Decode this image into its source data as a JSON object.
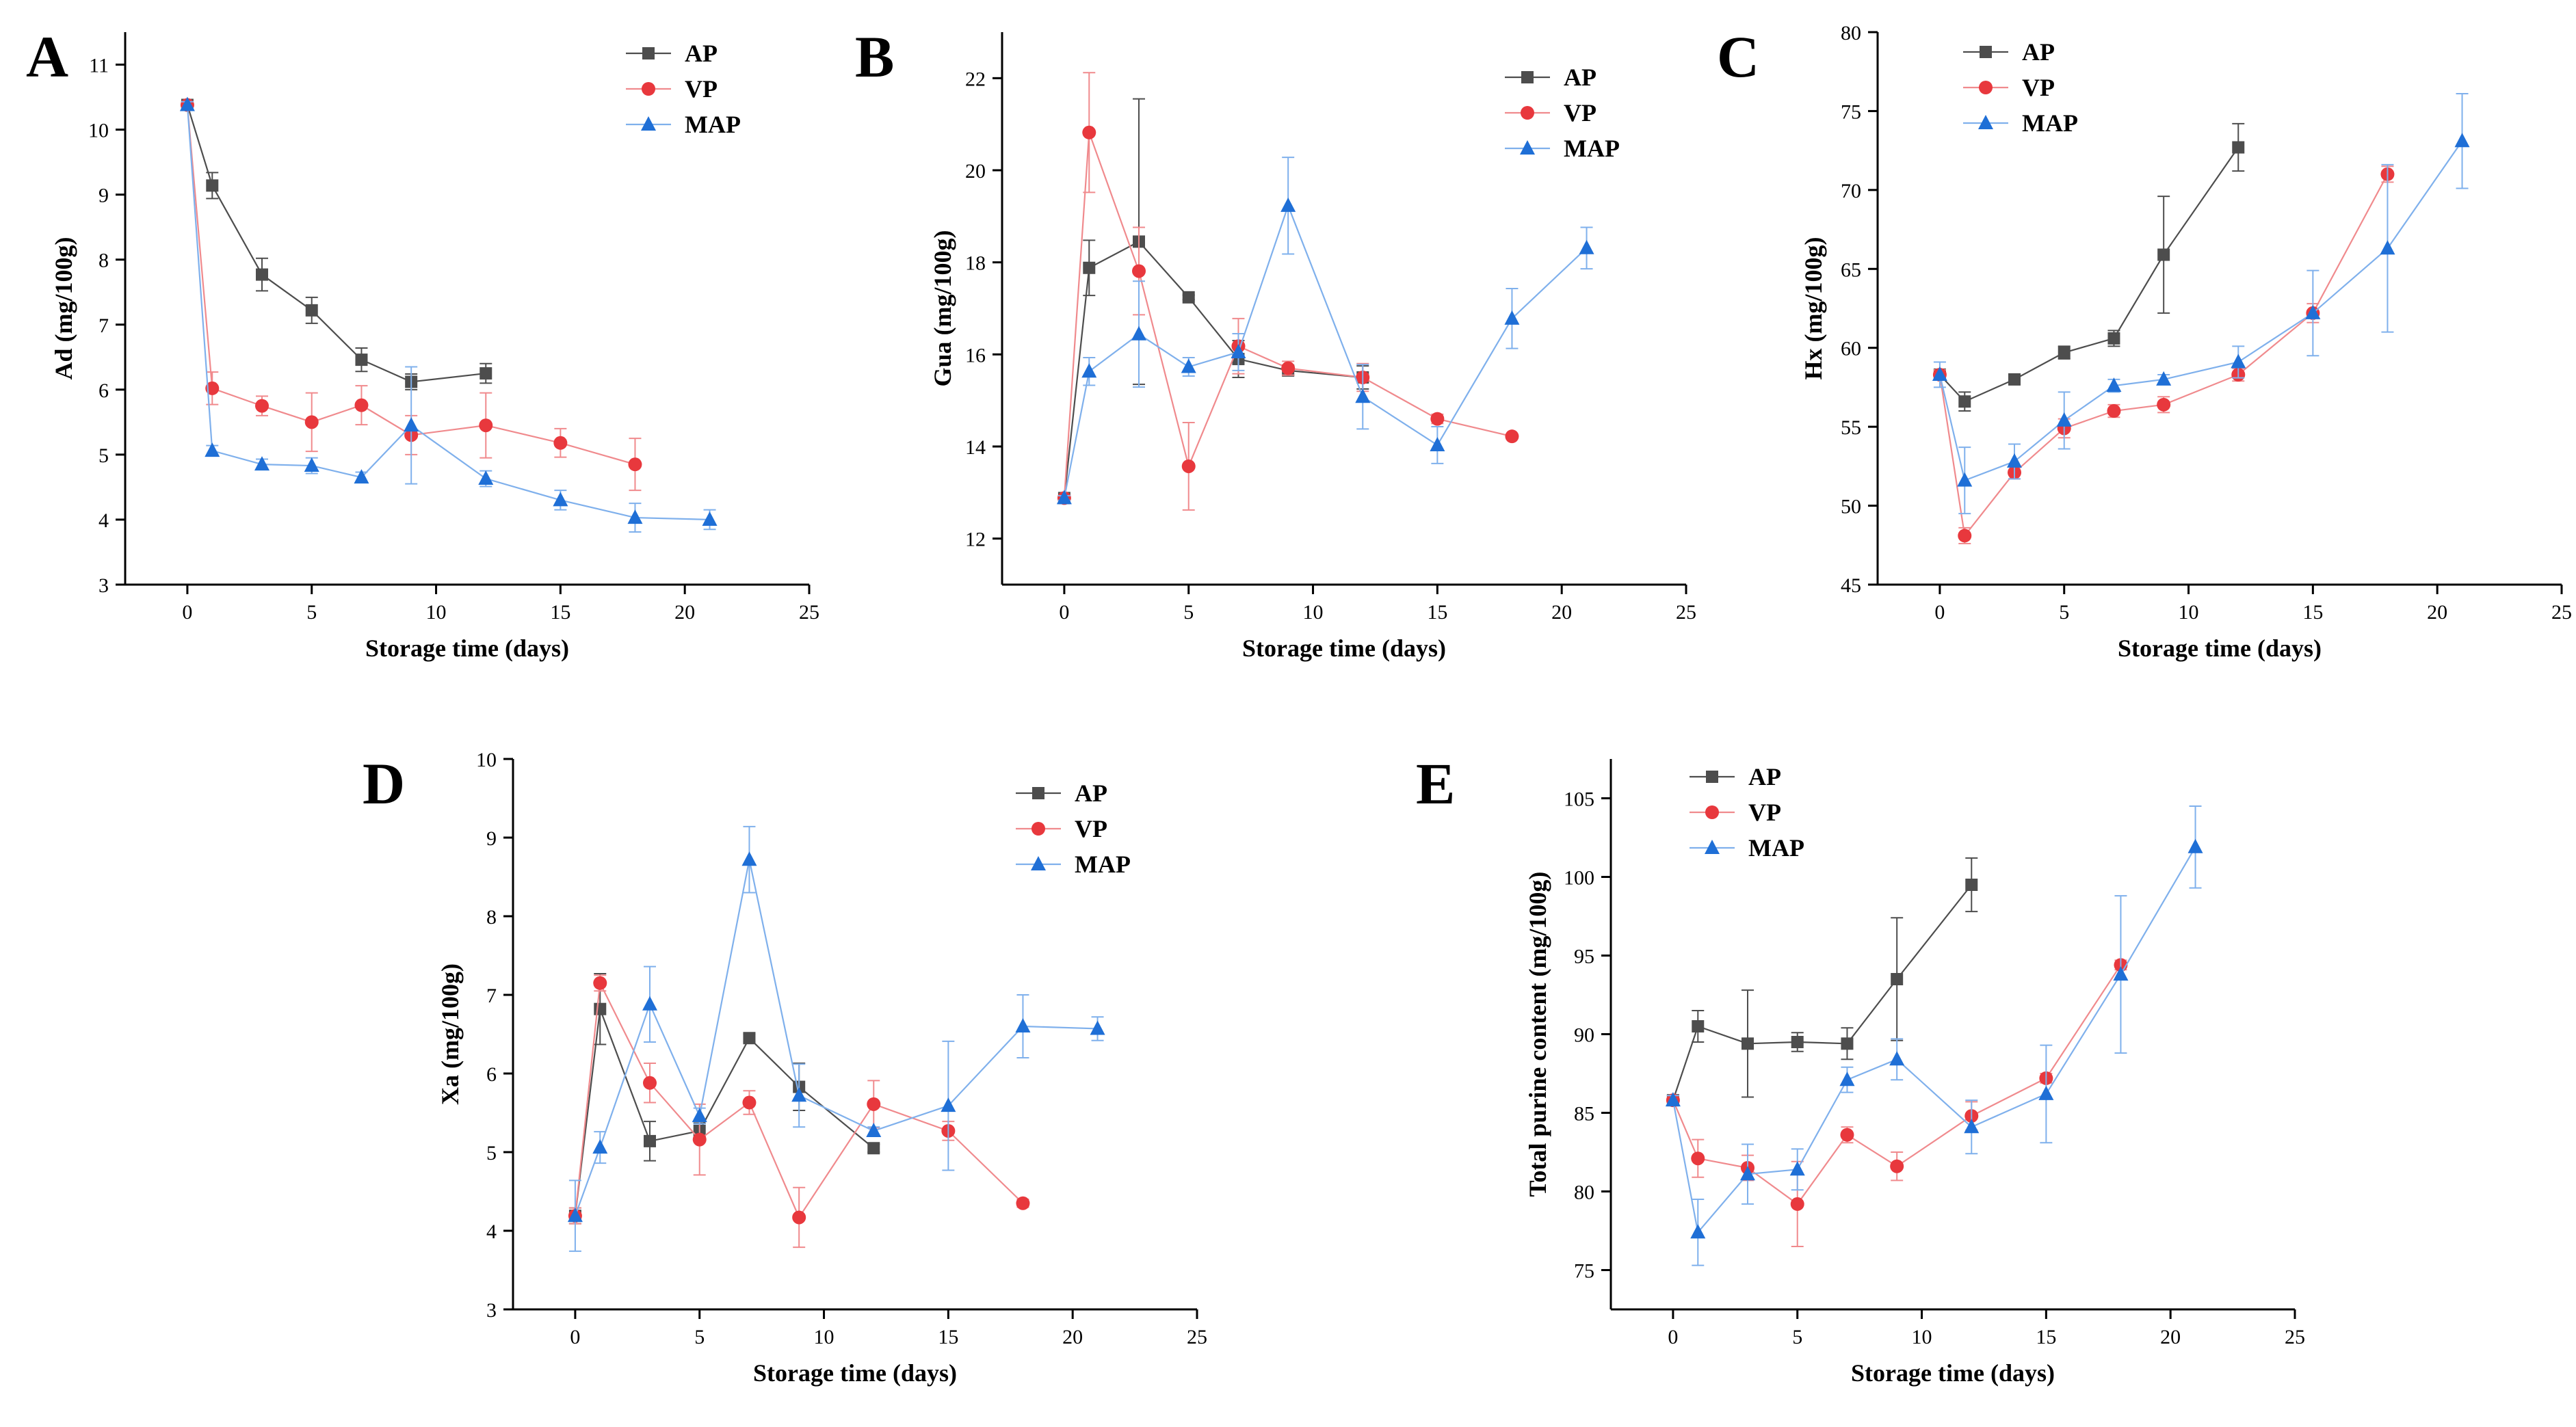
{
  "figure": {
    "colors": {
      "AP": "#4d4d4d",
      "VP": "#e8383d",
      "MAP": "#1f6fd6",
      "VP_line": "#f08a8d",
      "MAP_line": "#7fb0ec",
      "axis": "#000000"
    },
    "markers": {
      "AP": "square",
      "VP": "circle",
      "MAP": "triangle"
    }
  },
  "chart_data": [
    {
      "panel": "A",
      "type": "line",
      "title": "",
      "xlabel": "Storage time (days)",
      "ylabel": "Ad (mg/100g)",
      "xlim": [
        -2.5,
        25
      ],
      "ylim": [
        3,
        11.5
      ],
      "xticks": [
        0,
        5,
        10,
        15,
        20,
        25
      ],
      "yticks": [
        3,
        4,
        5,
        6,
        7,
        8,
        9,
        10,
        11
      ],
      "legend": "top-right",
      "series": [
        {
          "name": "AP",
          "x": [
            0,
            1,
            3,
            5,
            7,
            9,
            12
          ],
          "y": [
            10.38,
            9.14,
            7.77,
            7.22,
            6.46,
            6.12,
            6.25
          ],
          "err": [
            0.05,
            0.2,
            0.25,
            0.2,
            0.18,
            0.12,
            0.15
          ]
        },
        {
          "name": "VP",
          "x": [
            0,
            1,
            3,
            5,
            7,
            9,
            12,
            15,
            18
          ],
          "y": [
            10.38,
            6.02,
            5.75,
            5.5,
            5.76,
            5.3,
            5.45,
            5.18,
            4.85
          ],
          "err": [
            0.05,
            0.25,
            0.15,
            0.45,
            0.3,
            0.3,
            0.5,
            0.22,
            0.4
          ]
        },
        {
          "name": "MAP",
          "x": [
            0,
            1,
            3,
            5,
            7,
            9,
            12,
            15,
            18,
            21
          ],
          "y": [
            10.38,
            5.06,
            4.85,
            4.83,
            4.65,
            5.45,
            4.63,
            4.3,
            4.03,
            4.0
          ],
          "err": [
            0.05,
            0.08,
            0.08,
            0.12,
            0.08,
            0.9,
            0.12,
            0.15,
            0.22,
            0.15
          ]
        }
      ]
    },
    {
      "panel": "B",
      "type": "line",
      "title": "",
      "xlabel": "Storage time (days)",
      "ylabel": "Gua (mg/100g)",
      "xlim": [
        -2.5,
        25
      ],
      "ylim": [
        11,
        23
      ],
      "xticks": [
        0,
        5,
        10,
        15,
        20,
        25
      ],
      "yticks": [
        12,
        14,
        16,
        18,
        20,
        22
      ],
      "legend": "top-right",
      "series": [
        {
          "name": "AP",
          "x": [
            0,
            1,
            3,
            5,
            7,
            9,
            12
          ],
          "y": [
            12.88,
            17.88,
            18.45,
            17.24,
            15.9,
            15.65,
            15.5
          ],
          "err": [
            0.05,
            0.6,
            3.1,
            0.05,
            0.4,
            0.1,
            0.25
          ]
        },
        {
          "name": "VP",
          "x": [
            0,
            1,
            3,
            5,
            7,
            9,
            12,
            15,
            18
          ],
          "y": [
            12.88,
            20.82,
            17.81,
            13.57,
            16.18,
            15.7,
            15.5,
            14.6,
            14.22
          ],
          "err": [
            0.05,
            1.3,
            0.95,
            0.95,
            0.6,
            0.15,
            0.3,
            0.1,
            0.05
          ]
        },
        {
          "name": "MAP",
          "x": [
            0,
            1,
            3,
            5,
            7,
            9,
            12,
            15,
            18,
            21
          ],
          "y": [
            12.88,
            15.63,
            16.44,
            15.73,
            16.05,
            19.23,
            15.08,
            14.03,
            16.78,
            18.31
          ],
          "err": [
            0.05,
            0.3,
            1.15,
            0.2,
            0.4,
            1.05,
            0.7,
            0.4,
            0.65,
            0.45
          ]
        }
      ]
    },
    {
      "panel": "C",
      "type": "line",
      "title": "",
      "xlabel": "Storage time (days)",
      "ylabel": "Hx (mg/100g)",
      "xlim": [
        -2.5,
        25
      ],
      "ylim": [
        45,
        80
      ],
      "xticks": [
        0,
        5,
        10,
        15,
        20,
        25
      ],
      "yticks": [
        45,
        50,
        55,
        60,
        65,
        70,
        75,
        80
      ],
      "legend": "top-right",
      "series": [
        {
          "name": "AP",
          "x": [
            0,
            1,
            3,
            5,
            7,
            9,
            12
          ],
          "y": [
            58.3,
            56.6,
            58.0,
            59.7,
            60.6,
            65.9,
            72.7
          ],
          "err": [
            0.3,
            0.6,
            0.3,
            0.4,
            0.5,
            3.7,
            1.5
          ]
        },
        {
          "name": "VP",
          "x": [
            0,
            1,
            3,
            5,
            7,
            9,
            12,
            15,
            18
          ],
          "y": [
            58.3,
            48.1,
            52.1,
            54.9,
            56.0,
            56.4,
            58.3,
            62.2,
            71.0
          ],
          "err": [
            0.3,
            0.5,
            0.4,
            0.6,
            0.4,
            0.5,
            0.4,
            0.6,
            0.5
          ]
        },
        {
          "name": "MAP",
          "x": [
            0,
            1,
            3,
            5,
            7,
            9,
            12,
            15,
            18,
            21
          ],
          "y": [
            58.3,
            51.6,
            52.8,
            55.4,
            57.6,
            58.0,
            59.1,
            62.2,
            66.3,
            73.1
          ],
          "err": [
            0.8,
            2.1,
            1.1,
            1.8,
            0.4,
            0.3,
            1.0,
            2.7,
            5.3,
            3.0
          ]
        }
      ]
    },
    {
      "panel": "D",
      "type": "line",
      "title": "",
      "xlabel": "Storage time (days)",
      "ylabel": "Xa (mg/100g)",
      "xlim": [
        -2.5,
        25
      ],
      "ylim": [
        3,
        10
      ],
      "xticks": [
        0,
        5,
        10,
        15,
        20,
        25
      ],
      "yticks": [
        3,
        4,
        5,
        6,
        7,
        8,
        9,
        10
      ],
      "legend": "top-right",
      "series": [
        {
          "name": "AP",
          "x": [
            0,
            1,
            3,
            5,
            7,
            9,
            12
          ],
          "y": [
            4.19,
            6.82,
            5.14,
            5.27,
            6.45,
            5.83,
            5.05
          ],
          "err": [
            0.1,
            0.45,
            0.25,
            0.1,
            0.05,
            0.3,
            0.05
          ]
        },
        {
          "name": "VP",
          "x": [
            0,
            1,
            3,
            5,
            7,
            9,
            12,
            15,
            18
          ],
          "y": [
            4.19,
            7.15,
            5.88,
            5.16,
            5.63,
            4.17,
            5.61,
            5.27,
            4.35
          ],
          "err": [
            0.1,
            0.1,
            0.25,
            0.45,
            0.15,
            0.38,
            0.3,
            0.12,
            0.05
          ]
        },
        {
          "name": "MAP",
          "x": [
            0,
            1,
            3,
            5,
            7,
            9,
            12,
            15,
            18,
            21
          ],
          "y": [
            4.19,
            5.06,
            6.88,
            5.46,
            8.72,
            5.72,
            5.27,
            5.59,
            6.6,
            6.57
          ],
          "err": [
            0.45,
            0.2,
            0.48,
            0.1,
            0.42,
            0.4,
            0.05,
            0.82,
            0.4,
            0.15
          ]
        }
      ]
    },
    {
      "panel": "E",
      "type": "line",
      "title": "",
      "xlabel": "Storage time (days)",
      "ylabel": "Total purine content (mg/100g)",
      "xlim": [
        -2.5,
        25
      ],
      "ylim": [
        72.5,
        107.5
      ],
      "xticks": [
        0,
        5,
        10,
        15,
        20,
        25
      ],
      "yticks": [
        75,
        80,
        85,
        90,
        95,
        100,
        105
      ],
      "legend": "top-left",
      "series": [
        {
          "name": "AP",
          "x": [
            0,
            1,
            3,
            5,
            7,
            9,
            12
          ],
          "y": [
            85.8,
            90.5,
            89.4,
            89.5,
            89.4,
            93.5,
            99.5
          ],
          "err": [
            0.3,
            1.0,
            3.4,
            0.6,
            1.0,
            3.9,
            1.7
          ]
        },
        {
          "name": "VP",
          "x": [
            0,
            1,
            3,
            5,
            7,
            9,
            12,
            15,
            18
          ],
          "y": [
            85.8,
            82.1,
            81.5,
            79.2,
            83.6,
            81.6,
            84.8,
            87.2,
            94.4
          ],
          "err": [
            0.3,
            1.2,
            0.8,
            2.7,
            0.5,
            0.9,
            0.9,
            0.3,
            0.3
          ]
        },
        {
          "name": "MAP",
          "x": [
            0,
            1,
            3,
            5,
            7,
            9,
            12,
            15,
            18,
            21
          ],
          "y": [
            85.8,
            77.4,
            81.1,
            81.4,
            87.1,
            88.4,
            84.1,
            86.2,
            93.8,
            101.9
          ],
          "err": [
            0.3,
            2.1,
            1.9,
            1.3,
            0.8,
            1.3,
            1.7,
            3.1,
            5.0,
            2.6
          ]
        }
      ]
    }
  ]
}
